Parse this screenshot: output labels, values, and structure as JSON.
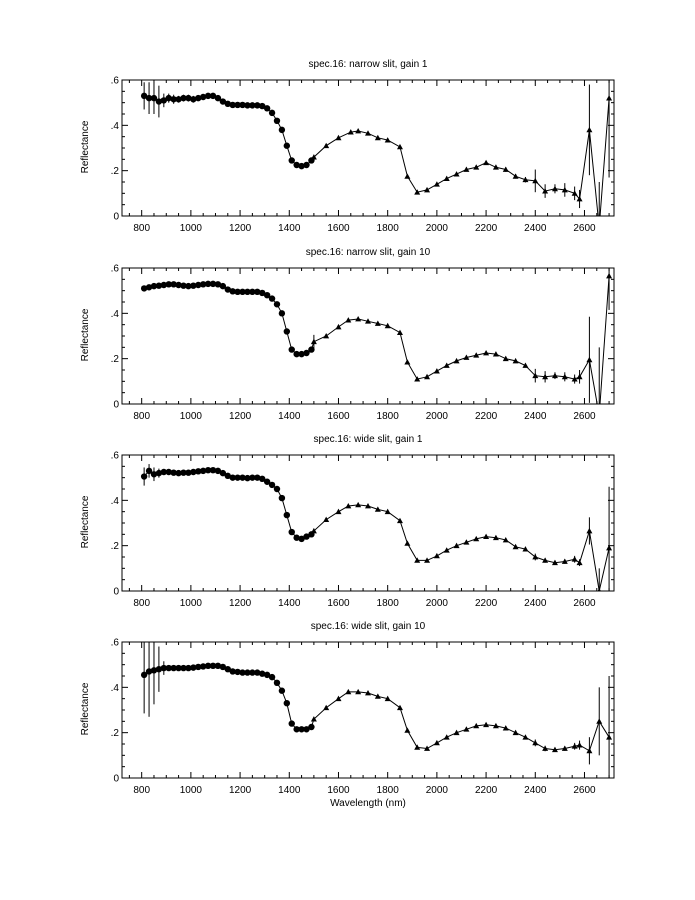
{
  "figure": {
    "xlabel": "Wavelength (nm)",
    "ylabel": "Reflectance"
  },
  "chart_data": [
    {
      "type": "line",
      "title": "spec.16: narrow slit, gain 1",
      "xlabel": "",
      "ylabel": "Reflectance",
      "xlim": [
        720,
        2720
      ],
      "ylim": [
        0,
        0.6
      ],
      "x_ticks": [
        800,
        1000,
        1200,
        1400,
        1600,
        1800,
        2000,
        2200,
        2400,
        2600
      ],
      "x_tick_labels": [
        "800",
        "1000",
        "1200",
        "1400",
        "1600",
        "1800",
        "2000",
        "2200",
        "2400",
        "2600"
      ],
      "y_ticks": [
        0,
        0.2,
        0.4,
        0.6
      ],
      "y_tick_labels": [
        "0",
        ".2",
        ".4",
        ".6"
      ],
      "grid": false,
      "series": [
        {
          "marker": "circle",
          "x": [
            810,
            830,
            850,
            870,
            890,
            910,
            930,
            950,
            970,
            990,
            1010,
            1030,
            1050,
            1070,
            1090,
            1110,
            1130,
            1150,
            1170,
            1190,
            1210,
            1230,
            1250,
            1270,
            1290,
            1310,
            1330,
            1350,
            1370,
            1390,
            1410,
            1430,
            1450,
            1470,
            1490
          ],
          "y": [
            0.53,
            0.52,
            0.52,
            0.505,
            0.51,
            0.52,
            0.515,
            0.515,
            0.52,
            0.52,
            0.515,
            0.52,
            0.525,
            0.53,
            0.53,
            0.52,
            0.505,
            0.495,
            0.49,
            0.49,
            0.49,
            0.488,
            0.488,
            0.488,
            0.485,
            0.475,
            0.455,
            0.42,
            0.38,
            0.31,
            0.245,
            0.225,
            0.22,
            0.225,
            0.245
          ],
          "err": [
            0.06,
            0.07,
            0.07,
            0.07,
            0.03,
            0.02,
            0.02,
            0.015,
            0.015,
            0.015,
            0.015,
            0.01,
            0.01,
            0.01,
            0.008,
            0.006,
            0.005,
            0.005,
            0.005,
            0.005,
            0.005,
            0.005,
            0.005,
            0.005,
            0.005,
            0.005,
            0.005,
            0.005,
            0.005,
            0.005,
            0.005,
            0.005,
            0.005,
            0.005,
            0.005
          ]
        },
        {
          "marker": "triangle",
          "x": [
            1500,
            1550,
            1600,
            1650,
            1680,
            1720,
            1760,
            1800,
            1850,
            1880,
            1920,
            1960,
            2000,
            2040,
            2080,
            2120,
            2160,
            2200,
            2240,
            2280,
            2320,
            2360,
            2400,
            2440,
            2480,
            2520,
            2560,
            2580,
            2620,
            2660,
            2700
          ],
          "y": [
            0.26,
            0.31,
            0.345,
            0.37,
            0.375,
            0.365,
            0.345,
            0.335,
            0.305,
            0.175,
            0.105,
            0.115,
            0.14,
            0.165,
            0.185,
            0.205,
            0.215,
            0.235,
            0.215,
            0.205,
            0.175,
            0.16,
            0.155,
            0.11,
            0.12,
            0.115,
            0.1,
            0.075,
            0.38,
            -0.05,
            0.52
          ],
          "err": [
            0.006,
            0.006,
            0.006,
            0.006,
            0.006,
            0.006,
            0.006,
            0.006,
            0.006,
            0.008,
            0.008,
            0.008,
            0.008,
            0.008,
            0.008,
            0.008,
            0.008,
            0.008,
            0.008,
            0.01,
            0.01,
            0.012,
            0.05,
            0.03,
            0.02,
            0.03,
            0.03,
            0.04,
            0.2,
            0.2,
            0.35
          ]
        }
      ]
    },
    {
      "type": "line",
      "title": "spec.16: narrow slit, gain 10",
      "xlabel": "",
      "ylabel": "Reflectance",
      "xlim": [
        720,
        2720
      ],
      "ylim": [
        0,
        0.6
      ],
      "x_ticks": [
        800,
        1000,
        1200,
        1400,
        1600,
        1800,
        2000,
        2200,
        2400,
        2600
      ],
      "x_tick_labels": [
        "800",
        "1000",
        "1200",
        "1400",
        "1600",
        "1800",
        "2000",
        "2200",
        "2400",
        "2600"
      ],
      "y_ticks": [
        0,
        0.2,
        0.4,
        0.6
      ],
      "y_tick_labels": [
        "0",
        ".2",
        ".4",
        ".6"
      ],
      "grid": false,
      "series": [
        {
          "marker": "circle",
          "x": [
            810,
            830,
            850,
            870,
            890,
            910,
            930,
            950,
            970,
            990,
            1010,
            1030,
            1050,
            1070,
            1090,
            1110,
            1130,
            1150,
            1170,
            1190,
            1210,
            1230,
            1250,
            1270,
            1290,
            1310,
            1330,
            1350,
            1370,
            1390,
            1410,
            1430,
            1450,
            1470,
            1490
          ],
          "y": [
            0.51,
            0.515,
            0.52,
            0.522,
            0.525,
            0.528,
            0.528,
            0.525,
            0.522,
            0.52,
            0.522,
            0.525,
            0.528,
            0.53,
            0.53,
            0.528,
            0.52,
            0.505,
            0.497,
            0.495,
            0.495,
            0.495,
            0.495,
            0.495,
            0.49,
            0.48,
            0.465,
            0.44,
            0.4,
            0.32,
            0.24,
            0.22,
            0.22,
            0.225,
            0.24
          ],
          "err": [
            0.005,
            0.005,
            0.005,
            0.005,
            0.005,
            0.005,
            0.005,
            0.005,
            0.005,
            0.005,
            0.005,
            0.005,
            0.005,
            0.005,
            0.005,
            0.005,
            0.005,
            0.005,
            0.005,
            0.005,
            0.005,
            0.005,
            0.005,
            0.005,
            0.005,
            0.005,
            0.005,
            0.005,
            0.005,
            0.005,
            0.005,
            0.005,
            0.005,
            0.005,
            0.005
          ]
        },
        {
          "marker": "triangle",
          "x": [
            1500,
            1550,
            1600,
            1640,
            1680,
            1720,
            1760,
            1800,
            1850,
            1880,
            1920,
            1960,
            2000,
            2040,
            2080,
            2120,
            2160,
            2200,
            2240,
            2280,
            2320,
            2360,
            2400,
            2440,
            2480,
            2520,
            2560,
            2580,
            2620,
            2660,
            2700
          ],
          "y": [
            0.275,
            0.3,
            0.34,
            0.37,
            0.375,
            0.365,
            0.355,
            0.345,
            0.315,
            0.185,
            0.11,
            0.12,
            0.145,
            0.17,
            0.19,
            0.205,
            0.215,
            0.225,
            0.22,
            0.2,
            0.19,
            0.17,
            0.125,
            0.12,
            0.125,
            0.12,
            0.11,
            0.12,
            0.195,
            -0.05,
            0.565
          ],
          "err": [
            0.03,
            0.006,
            0.006,
            0.006,
            0.006,
            0.006,
            0.006,
            0.006,
            0.006,
            0.008,
            0.008,
            0.008,
            0.008,
            0.008,
            0.008,
            0.008,
            0.008,
            0.008,
            0.008,
            0.008,
            0.008,
            0.008,
            0.03,
            0.025,
            0.015,
            0.02,
            0.02,
            0.03,
            0.19,
            0.3,
            0.15
          ]
        }
      ]
    },
    {
      "type": "line",
      "title": "spec.16: wide slit, gain 1",
      "xlabel": "",
      "ylabel": "Reflectance",
      "xlim": [
        720,
        2720
      ],
      "ylim": [
        0,
        0.6
      ],
      "x_ticks": [
        800,
        1000,
        1200,
        1400,
        1600,
        1800,
        2000,
        2200,
        2400,
        2600
      ],
      "x_tick_labels": [
        "800",
        "1000",
        "1200",
        "1400",
        "1600",
        "1800",
        "2000",
        "2200",
        "2400",
        "2600"
      ],
      "y_ticks": [
        0,
        0.2,
        0.4,
        0.6
      ],
      "y_tick_labels": [
        "0",
        ".2",
        ".4",
        ".6"
      ],
      "grid": false,
      "series": [
        {
          "marker": "circle",
          "x": [
            810,
            830,
            850,
            870,
            890,
            910,
            930,
            950,
            970,
            990,
            1010,
            1030,
            1050,
            1070,
            1090,
            1110,
            1130,
            1150,
            1170,
            1190,
            1210,
            1230,
            1250,
            1270,
            1290,
            1310,
            1330,
            1350,
            1370,
            1390,
            1410,
            1430,
            1450,
            1470,
            1490
          ],
          "y": [
            0.505,
            0.53,
            0.515,
            0.52,
            0.525,
            0.525,
            0.522,
            0.52,
            0.522,
            0.522,
            0.525,
            0.528,
            0.53,
            0.533,
            0.533,
            0.53,
            0.52,
            0.508,
            0.5,
            0.5,
            0.5,
            0.498,
            0.5,
            0.5,
            0.495,
            0.482,
            0.468,
            0.45,
            0.41,
            0.335,
            0.26,
            0.235,
            0.23,
            0.24,
            0.25
          ],
          "err": [
            0.04,
            0.03,
            0.03,
            0.02,
            0.01,
            0.008,
            0.006,
            0.005,
            0.005,
            0.005,
            0.005,
            0.005,
            0.005,
            0.005,
            0.005,
            0.005,
            0.005,
            0.005,
            0.005,
            0.005,
            0.005,
            0.005,
            0.005,
            0.005,
            0.005,
            0.005,
            0.005,
            0.005,
            0.005,
            0.005,
            0.005,
            0.005,
            0.005,
            0.005,
            0.005
          ]
        },
        {
          "marker": "triangle",
          "x": [
            1500,
            1550,
            1600,
            1640,
            1680,
            1720,
            1760,
            1800,
            1850,
            1880,
            1920,
            1960,
            2000,
            2040,
            2080,
            2120,
            2160,
            2200,
            2240,
            2280,
            2320,
            2360,
            2400,
            2440,
            2480,
            2520,
            2560,
            2580,
            2620,
            2660,
            2700
          ],
          "y": [
            0.265,
            0.315,
            0.35,
            0.375,
            0.38,
            0.375,
            0.36,
            0.35,
            0.31,
            0.21,
            0.135,
            0.135,
            0.155,
            0.18,
            0.2,
            0.215,
            0.23,
            0.24,
            0.235,
            0.225,
            0.195,
            0.185,
            0.15,
            0.135,
            0.125,
            0.13,
            0.14,
            0.125,
            0.265,
            0.0,
            0.19
          ],
          "err": [
            0.006,
            0.006,
            0.006,
            0.006,
            0.006,
            0.006,
            0.006,
            0.006,
            0.006,
            0.008,
            0.008,
            0.008,
            0.008,
            0.008,
            0.008,
            0.008,
            0.008,
            0.008,
            0.008,
            0.008,
            0.008,
            0.008,
            0.015,
            0.01,
            0.01,
            0.01,
            0.015,
            0.015,
            0.06,
            0.1,
            0.27
          ]
        }
      ]
    },
    {
      "type": "line",
      "title": "spec.16: wide slit, gain 10",
      "xlabel": "Wavelength (nm)",
      "ylabel": "Reflectance",
      "xlim": [
        720,
        2720
      ],
      "ylim": [
        0,
        0.6
      ],
      "x_ticks": [
        800,
        1000,
        1200,
        1400,
        1600,
        1800,
        2000,
        2200,
        2400,
        2600
      ],
      "x_tick_labels": [
        "800",
        "1000",
        "1200",
        "1400",
        "1600",
        "1800",
        "2000",
        "2200",
        "2400",
        "2600"
      ],
      "y_ticks": [
        0,
        0.2,
        0.4,
        0.6
      ],
      "y_tick_labels": [
        "0",
        ".2",
        ".4",
        ".6"
      ],
      "grid": false,
      "series": [
        {
          "marker": "circle",
          "x": [
            810,
            830,
            850,
            870,
            890,
            910,
            930,
            950,
            970,
            990,
            1010,
            1030,
            1050,
            1070,
            1090,
            1110,
            1130,
            1150,
            1170,
            1190,
            1210,
            1230,
            1250,
            1270,
            1290,
            1310,
            1330,
            1350,
            1370,
            1390,
            1410,
            1430,
            1450,
            1470,
            1490
          ],
          "y": [
            0.455,
            0.47,
            0.475,
            0.48,
            0.485,
            0.485,
            0.485,
            0.485,
            0.485,
            0.485,
            0.487,
            0.49,
            0.492,
            0.495,
            0.495,
            0.495,
            0.49,
            0.48,
            0.47,
            0.468,
            0.465,
            0.465,
            0.465,
            0.465,
            0.46,
            0.455,
            0.445,
            0.42,
            0.385,
            0.33,
            0.24,
            0.215,
            0.215,
            0.215,
            0.225
          ],
          "err": [
            0.17,
            0.2,
            0.15,
            0.1,
            0.03,
            0.01,
            0.008,
            0.006,
            0.005,
            0.005,
            0.005,
            0.005,
            0.005,
            0.005,
            0.005,
            0.005,
            0.005,
            0.005,
            0.005,
            0.005,
            0.005,
            0.005,
            0.005,
            0.005,
            0.005,
            0.005,
            0.005,
            0.005,
            0.005,
            0.005,
            0.005,
            0.005,
            0.005,
            0.005,
            0.005
          ]
        },
        {
          "marker": "triangle",
          "x": [
            1500,
            1550,
            1600,
            1640,
            1680,
            1720,
            1760,
            1800,
            1850,
            1880,
            1920,
            1960,
            2000,
            2040,
            2080,
            2120,
            2160,
            2200,
            2240,
            2280,
            2320,
            2360,
            2400,
            2440,
            2480,
            2520,
            2560,
            2580,
            2620,
            2660,
            2700
          ],
          "y": [
            0.26,
            0.31,
            0.35,
            0.38,
            0.38,
            0.375,
            0.36,
            0.35,
            0.31,
            0.21,
            0.135,
            0.13,
            0.155,
            0.18,
            0.2,
            0.215,
            0.23,
            0.235,
            0.23,
            0.22,
            0.2,
            0.18,
            0.155,
            0.13,
            0.125,
            0.13,
            0.14,
            0.145,
            0.12,
            0.25,
            0.18
          ],
          "err": [
            0.006,
            0.006,
            0.006,
            0.006,
            0.006,
            0.006,
            0.006,
            0.006,
            0.006,
            0.008,
            0.008,
            0.008,
            0.008,
            0.008,
            0.008,
            0.008,
            0.008,
            0.008,
            0.008,
            0.008,
            0.008,
            0.008,
            0.015,
            0.012,
            0.01,
            0.01,
            0.015,
            0.02,
            0.06,
            0.15,
            0.27
          ]
        }
      ]
    }
  ]
}
